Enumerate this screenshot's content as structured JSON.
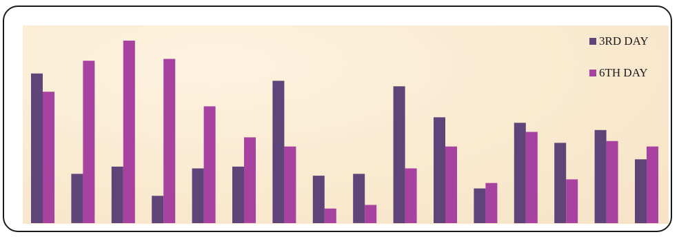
{
  "chart_data": {
    "type": "bar",
    "title": "",
    "xlabel": "",
    "ylabel": "",
    "categories": [
      "",
      "",
      "",
      "",
      "",
      "",
      "",
      "",
      "",
      "",
      "",
      "",
      "",
      "",
      "",
      ""
    ],
    "ylim": [
      0,
      100
    ],
    "grid": false,
    "legend_position": "top-right",
    "series": [
      {
        "name": "3RD DAY",
        "color": "#5e4478",
        "values": [
          82,
          27,
          31,
          15,
          30,
          31,
          78,
          26,
          27,
          75,
          58,
          19,
          55,
          44,
          51,
          35
        ]
      },
      {
        "name": "6TH DAY",
        "color": "#a742a0",
        "values": [
          72,
          89,
          100,
          90,
          64,
          47,
          42,
          8,
          10,
          30,
          42,
          22,
          50,
          24,
          45,
          42
        ]
      }
    ]
  }
}
